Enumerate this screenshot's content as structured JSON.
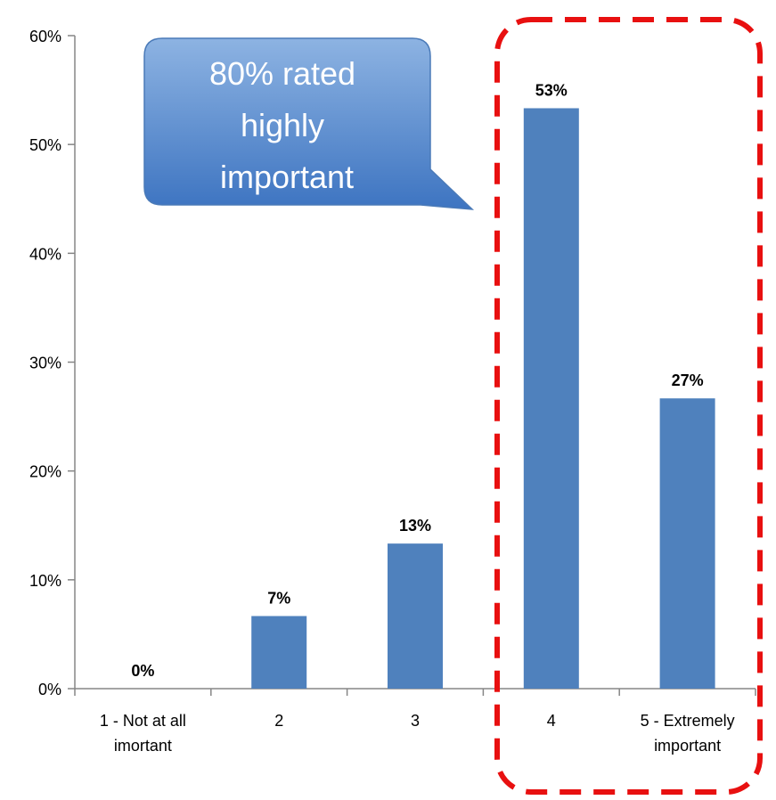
{
  "chart_data": {
    "type": "bar",
    "categories": [
      "1 - Not at all imortant",
      "2",
      "3",
      "4",
      "5 - Extremely important"
    ],
    "values": [
      0,
      7,
      13,
      53,
      27
    ],
    "plotted_values": [
      0,
      6.67,
      13.33,
      53.33,
      26.67
    ],
    "data_labels": [
      "0%",
      "7%",
      "13%",
      "53%",
      "27%"
    ],
    "y_ticks": [
      "0%",
      "10%",
      "20%",
      "30%",
      "40%",
      "50%",
      "60%"
    ],
    "ylim": [
      0,
      60
    ],
    "y_unit": "%",
    "grid": false,
    "highlight": {
      "categories": [
        "4",
        "5 - Extremely important"
      ],
      "style": "red dashed rounded box"
    },
    "annotation": "80% rated highly important",
    "colors": {
      "bar": "#4f81bd",
      "highlight_border": "#e81010",
      "callout_top": "#8db3e2",
      "callout_bottom": "#3d74c1",
      "axis": "#868686"
    }
  }
}
